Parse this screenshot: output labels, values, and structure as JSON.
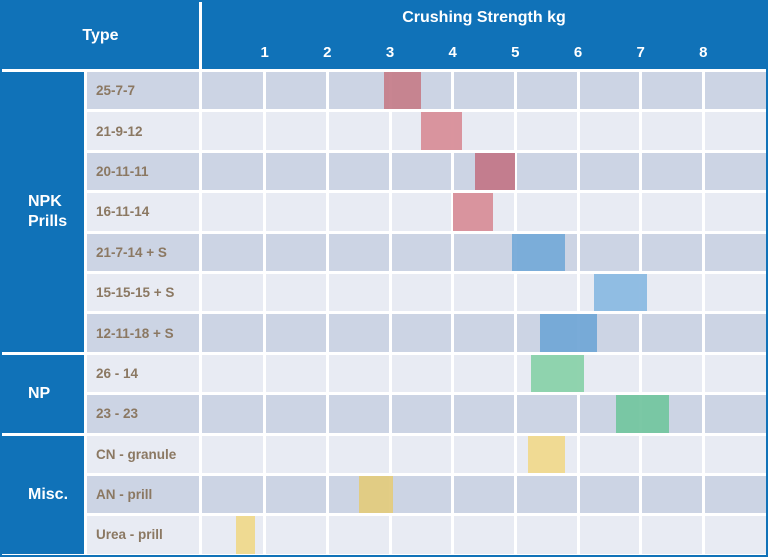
{
  "header": {
    "type_label": "Type",
    "title": "Crushing Strength kg"
  },
  "chart_data": {
    "type": "bar",
    "variant": "horizontal-range-bars",
    "title": "Crushing Strength kg",
    "row_group_header": "Type",
    "x_axis": {
      "unit": "kg",
      "min": 0,
      "max": 9,
      "tick_labels": [
        "1",
        "2",
        "3",
        "4",
        "5",
        "6",
        "7",
        "8"
      ],
      "gridlines": true
    },
    "sections": [
      {
        "category": "NPK Prills",
        "rows": [
          {
            "label": "25-7-7",
            "range_kg": [
              2.9,
              3.5
            ],
            "color": "#c6808d"
          },
          {
            "label": "21-9-12",
            "range_kg": [
              3.5,
              4.15
            ],
            "color": "#d9909a"
          },
          {
            "label": "20-11-11",
            "range_kg": [
              4.35,
              5.0
            ],
            "color": "#c3798a"
          },
          {
            "label": "16-11-14",
            "range_kg": [
              4.0,
              4.65
            ],
            "color": "#d9909a"
          },
          {
            "label": "21-7-14 + S",
            "range_kg": [
              4.95,
              5.8
            ],
            "color": "#78abd9"
          },
          {
            "label": "15-15-15 + S",
            "range_kg": [
              6.25,
              7.1
            ],
            "color": "#8cbae2"
          },
          {
            "label": "12-11-18 + S",
            "range_kg": [
              5.4,
              6.3
            ],
            "color": "#74a8d6"
          }
        ]
      },
      {
        "category": "NP",
        "rows": [
          {
            "label": "26 - 14",
            "range_kg": [
              5.25,
              6.1
            ],
            "color": "#8bd1ab"
          },
          {
            "label": "23 - 23",
            "range_kg": [
              6.6,
              7.45
            ],
            "color": "#76c6a1"
          }
        ]
      },
      {
        "category": "Misc.",
        "rows": [
          {
            "label": "CN - granule",
            "range_kg": [
              5.2,
              5.8
            ],
            "color": "#f0d88f"
          },
          {
            "label": "AN - prill",
            "range_kg": [
              2.5,
              3.05
            ],
            "color": "#e2cb80"
          },
          {
            "label": "Urea - prill",
            "range_kg": [
              0.55,
              0.85
            ],
            "color": "#efd88e"
          }
        ]
      }
    ],
    "colors": {
      "header_bg": "#1072b8",
      "header_text": "#ffffff",
      "row_dark_bg": "#ccd4e4",
      "row_light_bg": "#e8ebf3",
      "gridline": "#ffffff",
      "row_label_text": "#8b7862"
    }
  }
}
